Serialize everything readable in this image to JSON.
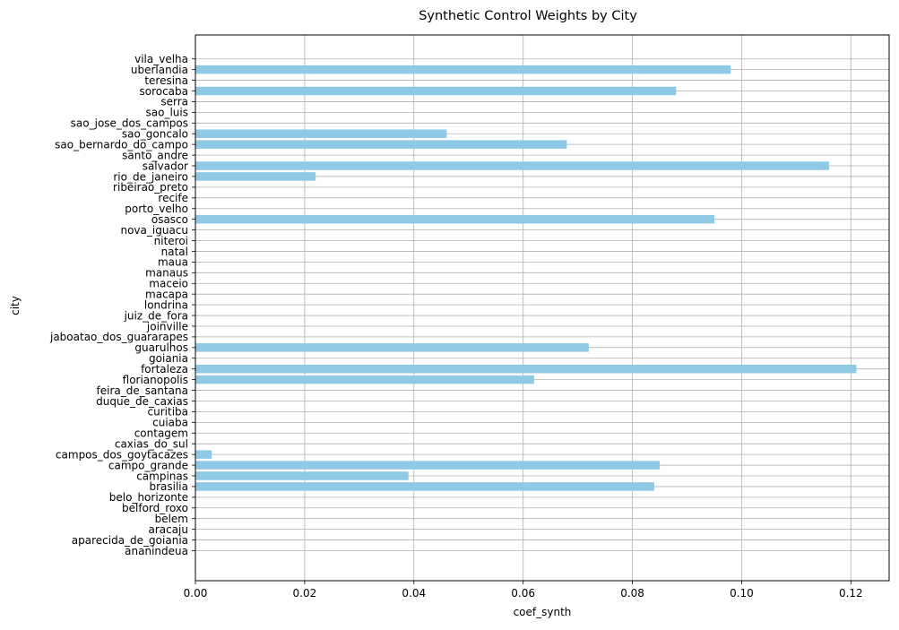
{
  "chart_data": {
    "type": "bar",
    "orientation": "horizontal",
    "title": "Synthetic Control Weights by City",
    "xlabel": "coef_synth",
    "ylabel": "city",
    "xlim": [
      0,
      0.127
    ],
    "xticks": [
      "0.00",
      "0.02",
      "0.04",
      "0.06",
      "0.08",
      "0.10",
      "0.12"
    ],
    "xtick_values": [
      0,
      0.02,
      0.04,
      0.06,
      0.08,
      0.1,
      0.12
    ],
    "grid": true,
    "bar_color": "#8ecae6",
    "grid_color": "#b0b0b0",
    "categories": [
      "ananindeua",
      "aparecida_de_goiania",
      "aracaju",
      "belem",
      "belford_roxo",
      "belo_horizonte",
      "brasilia",
      "campinas",
      "campo_grande",
      "campos_dos_goytacazes",
      "caxias_do_sul",
      "contagem",
      "cuiaba",
      "curitiba",
      "duque_de_caxias",
      "feira_de_santana",
      "florianopolis",
      "fortaleza",
      "goiania",
      "guarulhos",
      "jaboatao_dos_guararapes",
      "joinville",
      "juiz_de_fora",
      "londrina",
      "macapa",
      "maceio",
      "manaus",
      "maua",
      "natal",
      "niteroi",
      "nova_iguacu",
      "osasco",
      "porto_velho",
      "recife",
      "ribeirao_preto",
      "rio_de_janeiro",
      "salvador",
      "santo_andre",
      "sao_bernardo_do_campo",
      "sao_goncalo",
      "sao_jose_dos_campos",
      "sao_luis",
      "serra",
      "sorocaba",
      "teresina",
      "uberlandia",
      "vila_velha"
    ],
    "values": [
      0,
      0,
      0,
      0,
      0,
      0,
      0.084,
      0.039,
      0.085,
      0.003,
      0,
      0,
      0,
      0,
      0,
      0,
      0.062,
      0.121,
      0,
      0.072,
      0,
      0,
      0,
      0,
      0,
      0,
      0,
      0,
      0,
      0,
      0,
      0.095,
      0,
      0,
      0,
      0.022,
      0.116,
      0,
      0.068,
      0.046,
      0,
      0,
      0,
      0.088,
      0,
      0.098,
      0
    ]
  }
}
